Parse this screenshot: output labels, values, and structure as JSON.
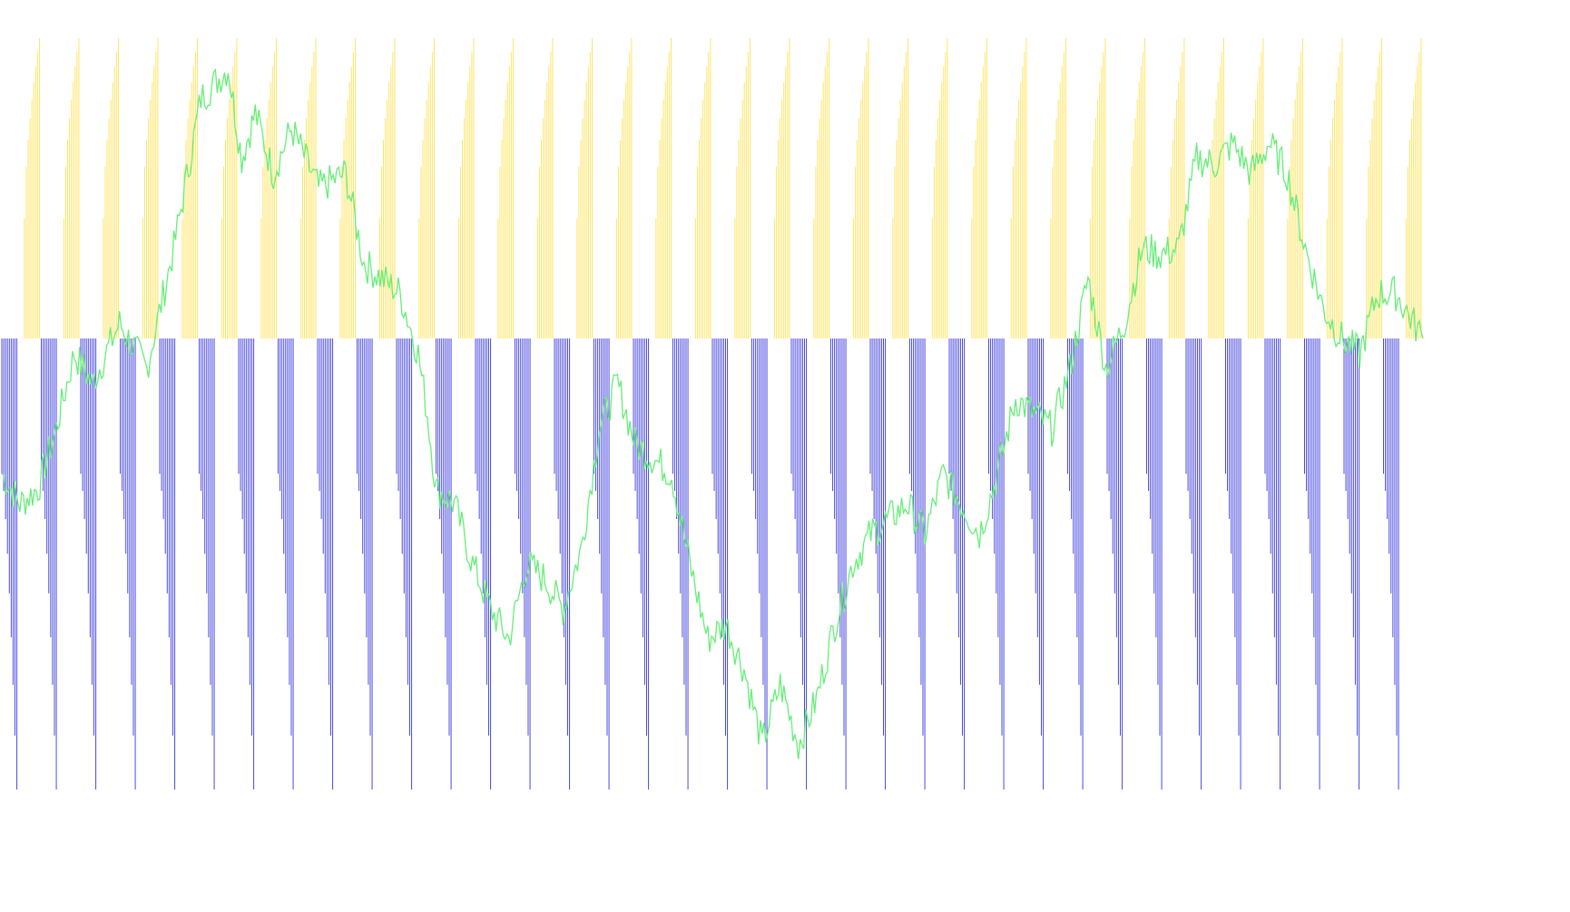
{
  "chart_data": {
    "type": "bar",
    "title": "",
    "xlabel": "",
    "ylabel": "",
    "grid": false,
    "legend": "none",
    "colors": {
      "positive_bars": "#ffe566",
      "negative_bars": "#4a4ae0",
      "line": "#66ee77",
      "background": "#ffffff"
    },
    "ylim": [
      -1.5,
      1.0
    ],
    "cycles": 36,
    "bars_per_cycle": 21,
    "series": [
      {
        "kind": "bars",
        "color": "#ffe566",
        "shape": "sawtooth-rising",
        "min": 0.0,
        "max": 1.0
      },
      {
        "kind": "bars",
        "color": "#4a4ae0",
        "shape": "sawtooth-falling",
        "min": -1.5,
        "max": 0.0
      },
      {
        "kind": "line",
        "color": "#66ee77",
        "x": [
          0,
          20,
          40,
          60,
          80,
          100,
          130,
          160,
          190,
          220,
          250,
          265,
          280,
          300,
          320,
          350,
          380,
          400,
          420,
          440,
          460,
          470,
          480,
          500,
          520,
          540,
          560,
          580,
          600,
          620,
          640,
          660,
          680,
          700,
          720,
          740,
          760,
          780,
          800,
          820,
          840,
          860,
          880,
          900,
          920,
          940,
          960,
          980,
          1000,
          1020,
          1040,
          1060,
          1080,
          1100,
          1120,
          1140,
          1160,
          1180,
          1200,
          1220,
          1240,
          1260,
          1280,
          1300,
          1320,
          1340,
          1360,
          1380,
          1400,
          1420,
          1440,
          1460,
          1480,
          1500,
          1520,
          1540,
          1560,
          1570
        ],
        "values": [
          -0.45,
          -0.55,
          -0.5,
          -0.3,
          -0.05,
          -0.15,
          0.05,
          -0.1,
          0.3,
          0.8,
          0.9,
          0.6,
          0.75,
          0.55,
          0.7,
          0.5,
          0.55,
          0.25,
          0.2,
          0.15,
          -0.05,
          -0.25,
          -0.5,
          -0.55,
          -0.75,
          -0.9,
          -1.0,
          -0.75,
          -0.8,
          -0.9,
          -0.7,
          -0.3,
          -0.15,
          -0.35,
          -0.4,
          -0.45,
          -0.75,
          -1.0,
          -0.95,
          -1.1,
          -1.35,
          -1.15,
          -1.35,
          -1.2,
          -0.95,
          -0.75,
          -0.65,
          -0.6,
          -0.55,
          -0.65,
          -0.45,
          -0.55,
          -0.65,
          -0.45,
          -0.2,
          -0.25,
          -0.3,
          -0.1,
          0.2,
          -0.1,
          0.05,
          0.3,
          0.28,
          0.3,
          0.6,
          0.58,
          0.65,
          0.55,
          0.65,
          0.55,
          0.3,
          0.1,
          0.0,
          -0.05,
          0.15,
          0.15,
          0.05,
          0.0
        ]
      }
    ]
  }
}
